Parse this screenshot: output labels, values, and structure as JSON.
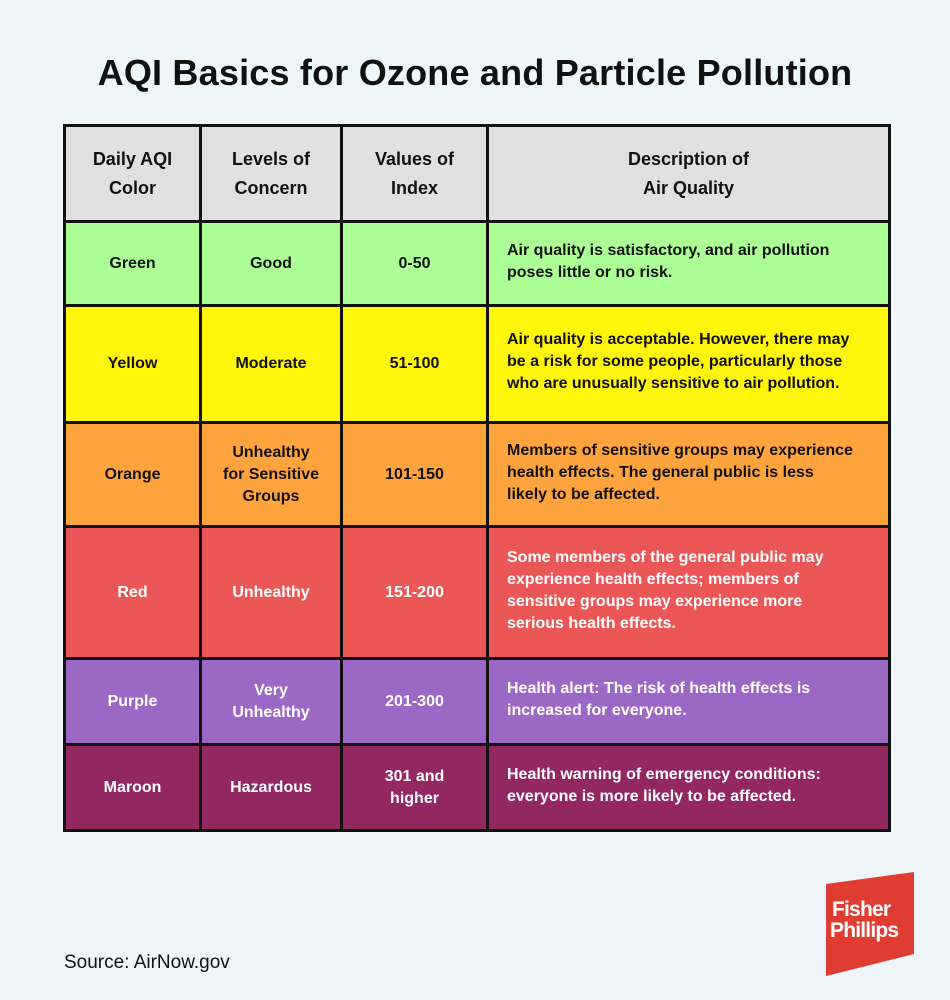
{
  "title": "AQI Basics for Ozone and Particle Pollution",
  "table": {
    "headers": [
      [
        "Daily AQI",
        "Color"
      ],
      [
        "Levels of",
        "Concern"
      ],
      [
        "Values of",
        "Index"
      ],
      [
        "Description of",
        "Air Quality"
      ]
    ],
    "rows": [
      {
        "color_name": "Green",
        "concern": [
          "Good"
        ],
        "index": [
          "0-50"
        ],
        "description": [
          "Air quality is satisfactory, and air pollution",
          "poses little or no risk."
        ],
        "bg": "#acff94",
        "text_color": "#111111"
      },
      {
        "color_name": "Yellow",
        "concern": [
          "Moderate"
        ],
        "index": [
          "51-100"
        ],
        "description": [
          "Air quality is acceptable. However, there may",
          "be a risk for some people, particularly those",
          "who are unusually sensitive to air pollution."
        ],
        "bg": "#fff60b",
        "text_color": "#111111"
      },
      {
        "color_name": "Orange",
        "concern": [
          "Unhealthy",
          "for Sensitive",
          "Groups"
        ],
        "index": [
          "101-150"
        ],
        "description": [
          "Members of sensitive groups may experience",
          "health effects. The general public is less",
          "likely to be affected."
        ],
        "bg": "#ffa43c",
        "text_color": "#111111"
      },
      {
        "color_name": "Red",
        "concern": [
          "Unhealthy"
        ],
        "index": [
          "151-200"
        ],
        "description": [
          "Some members of the general public may",
          "experience health effects; members of",
          "sensitive groups may experience more",
          "serious health effects."
        ],
        "bg": "#eb5757",
        "text_color": "#ffffff"
      },
      {
        "color_name": "Purple",
        "concern": [
          "Very",
          "Unhealthy"
        ],
        "index": [
          "201-300"
        ],
        "description": [
          "Health alert: The risk of health effects is",
          "increased for everyone."
        ],
        "bg": "#9b68c6",
        "text_color": "#ffffff"
      },
      {
        "color_name": "Maroon",
        "concern": [
          "Hazardous"
        ],
        "index": [
          "301 and",
          "higher"
        ],
        "description": [
          "Health warning of emergency conditions:",
          "everyone is more likely to be affected."
        ],
        "bg": "#93275f",
        "text_color": "#ffffff"
      }
    ]
  },
  "source": "Source: AirNow.gov",
  "logo": {
    "lines": [
      "Fisher",
      "Phillips"
    ],
    "color": "#e03c31"
  }
}
